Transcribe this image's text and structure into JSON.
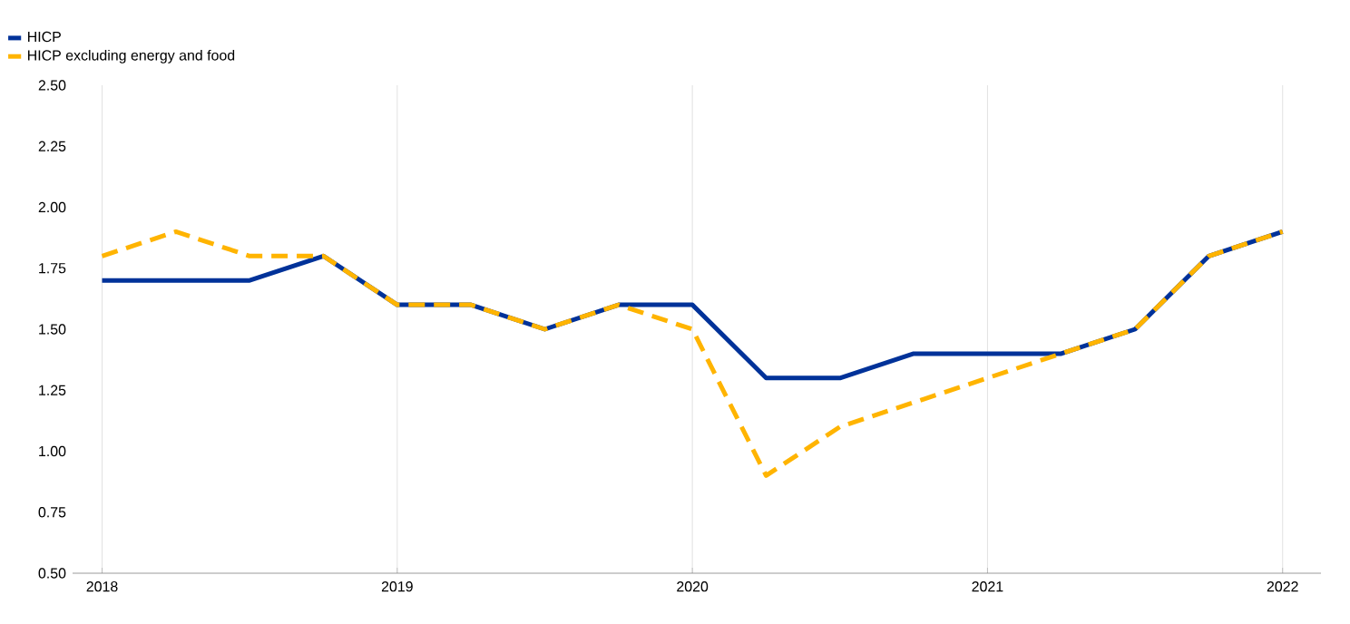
{
  "chart_data": {
    "type": "line",
    "x": [
      2018,
      2018.25,
      2018.5,
      2018.75,
      2019,
      2019.25,
      2019.5,
      2019.75,
      2020,
      2020.25,
      2020.5,
      2020.75,
      2021,
      2021.25,
      2021.5,
      2021.75,
      2022
    ],
    "series": [
      {
        "name": "HICP",
        "color": "#003299",
        "line_style": "solid",
        "values": [
          1.7,
          1.7,
          1.7,
          1.8,
          1.6,
          1.6,
          1.5,
          1.6,
          1.6,
          1.3,
          1.3,
          1.4,
          1.4,
          1.4,
          1.5,
          1.8,
          1.9
        ]
      },
      {
        "name": "HICP excluding energy and food",
        "color": "#ffb400",
        "line_style": "dashed",
        "values": [
          1.8,
          1.9,
          1.8,
          1.8,
          1.6,
          1.6,
          1.5,
          1.6,
          1.5,
          0.9,
          1.1,
          1.2,
          1.3,
          1.4,
          1.5,
          1.8,
          1.9
        ]
      }
    ],
    "xlim": [
      2017.9,
      2022.13
    ],
    "xticks": [
      2018,
      2019,
      2020,
      2021,
      2022
    ],
    "ylim": [
      0.5,
      2.5
    ],
    "yticks": [
      {
        "value": 0.5,
        "label": "0.50"
      },
      {
        "value": 0.75,
        "label": "0.75"
      },
      {
        "value": 1.0,
        "label": "1.00"
      },
      {
        "value": 1.25,
        "label": "1.25"
      },
      {
        "value": 1.5,
        "label": "1.50"
      },
      {
        "value": 1.75,
        "label": "1.75"
      },
      {
        "value": 2.0,
        "label": "2.00"
      },
      {
        "value": 2.25,
        "label": "2.25"
      },
      {
        "value": 2.5,
        "label": "2.50"
      }
    ],
    "grid": "x",
    "legend": "top left",
    "marker": "none"
  }
}
